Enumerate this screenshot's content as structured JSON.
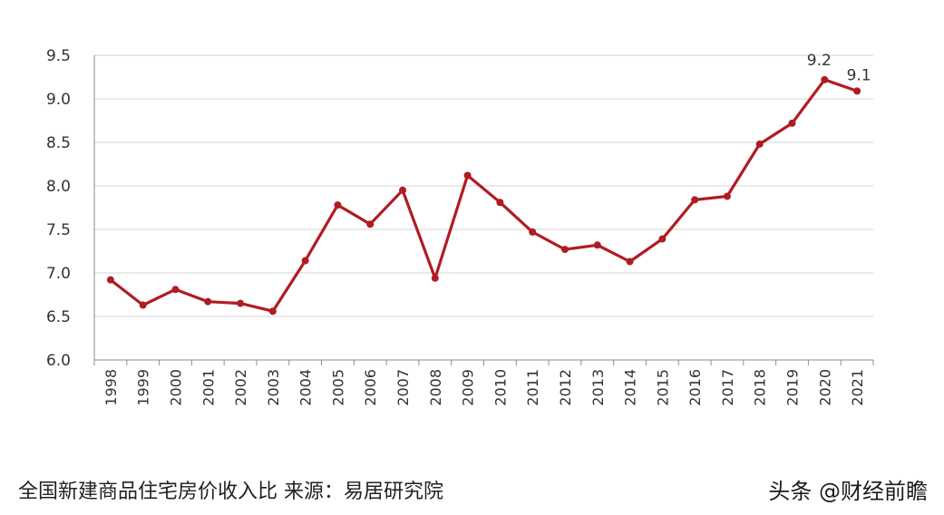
{
  "chart_data": {
    "type": "line",
    "title": "",
    "xlabel": "",
    "ylabel": "",
    "categories": [
      "1998",
      "1999",
      "2000",
      "2001",
      "2002",
      "2003",
      "2004",
      "2005",
      "2006",
      "2007",
      "2008",
      "2009",
      "2010",
      "2011",
      "2012",
      "2013",
      "2014",
      "2015",
      "2016",
      "2017",
      "2018",
      "2019",
      "2020",
      "2021"
    ],
    "values": [
      6.92,
      6.63,
      6.81,
      6.67,
      6.65,
      6.56,
      7.14,
      7.78,
      7.56,
      7.95,
      6.94,
      8.12,
      7.81,
      7.47,
      7.27,
      7.32,
      7.13,
      7.39,
      7.84,
      7.88,
      8.48,
      8.72,
      9.22,
      9.09
    ],
    "yticks": [
      "6.0",
      "6.5",
      "7.0",
      "7.5",
      "8.0",
      "8.5",
      "9.0",
      "9.5"
    ],
    "ylim": [
      6.0,
      9.5
    ],
    "grid": "horizontal",
    "line_color": "#b01c22",
    "data_labels": [
      {
        "category": "2020",
        "text": "9.2"
      },
      {
        "category": "2021",
        "text": "9.1"
      }
    ]
  },
  "caption": "全国新建商品住宅房价收入比 来源：易居研究院",
  "watermark": "头条 @财经前瞻"
}
